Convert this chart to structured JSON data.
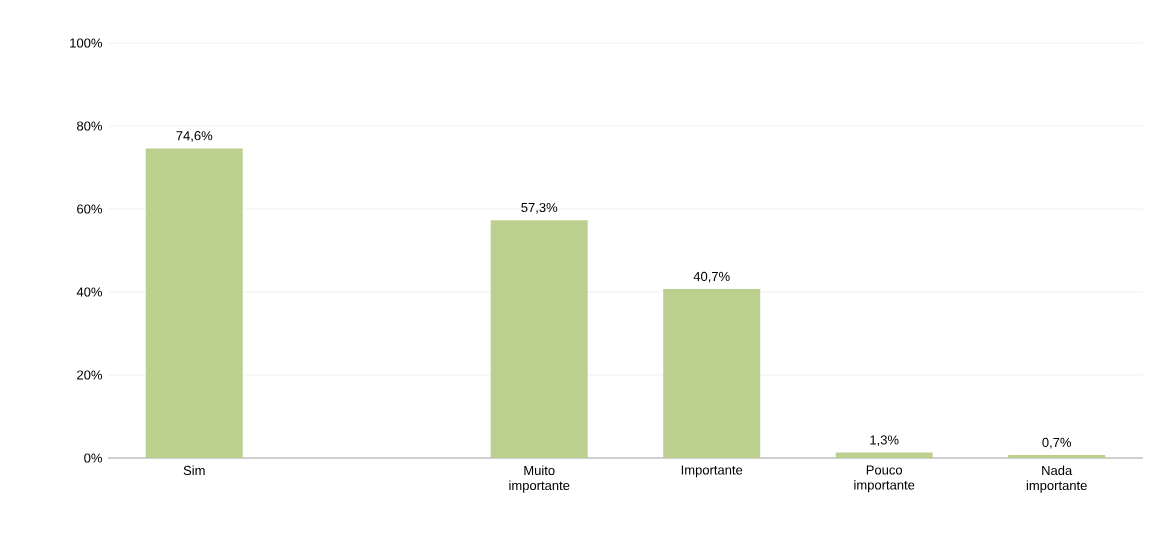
{
  "chart_data": {
    "type": "bar",
    "categories": [
      "Sim",
      null,
      "Muito importante",
      "Importante",
      "Pouco importante",
      "Nada importante"
    ],
    "values": [
      74.6,
      null,
      57.3,
      40.7,
      1.3,
      0.7
    ],
    "value_labels": [
      "74,6%",
      null,
      "57,3%",
      "40,7%",
      "1,3%",
      "0,7%"
    ],
    "color": "#bbcf8e",
    "ylim": [
      0,
      100
    ],
    "yticks": [
      {
        "value": 0,
        "label": "0%"
      },
      {
        "value": 20,
        "label": "20%"
      },
      {
        "value": 40,
        "label": "40%"
      },
      {
        "value": 60,
        "label": "60%"
      },
      {
        "value": 80,
        "label": "80%"
      },
      {
        "value": 100,
        "label": "100%"
      }
    ],
    "grid": "y"
  }
}
